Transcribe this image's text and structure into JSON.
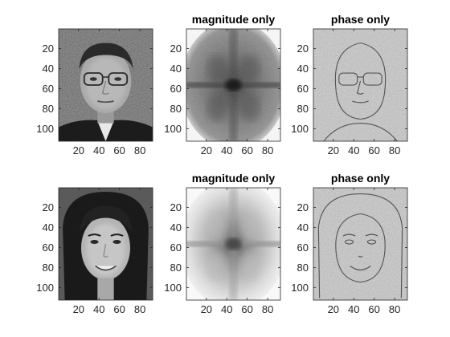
{
  "chart_data": {
    "type": "image-grid",
    "grid": {
      "rows": 2,
      "cols": 3
    },
    "panels": [
      {
        "id": "p11",
        "title": "",
        "row": 0,
        "col": 0,
        "image": "face-1-original",
        "xlim": [
          0.5,
          92.5
        ],
        "ylim": [
          0.5,
          112.5
        ]
      },
      {
        "id": "p12",
        "title": "magnitude only",
        "row": 0,
        "col": 1,
        "image": "face-1-magnitude-only",
        "xlim": [
          0.5,
          92.5
        ],
        "ylim": [
          0.5,
          112.5
        ]
      },
      {
        "id": "p13",
        "title": "phase only",
        "row": 0,
        "col": 2,
        "image": "face-1-phase-only",
        "xlim": [
          0.5,
          92.5
        ],
        "ylim": [
          0.5,
          112.5
        ]
      },
      {
        "id": "p21",
        "title": "",
        "row": 1,
        "col": 0,
        "image": "face-2-original",
        "xlim": [
          0.5,
          92.5
        ],
        "ylim": [
          0.5,
          112.5
        ]
      },
      {
        "id": "p22",
        "title": "magnitude only",
        "row": 1,
        "col": 1,
        "image": "face-2-magnitude-only",
        "xlim": [
          0.5,
          92.5
        ],
        "ylim": [
          0.5,
          112.5
        ]
      },
      {
        "id": "p23",
        "title": "phase only",
        "row": 1,
        "col": 2,
        "image": "face-2-phase-only",
        "xlim": [
          0.5,
          92.5
        ],
        "ylim": [
          0.5,
          112.5
        ]
      }
    ],
    "x_ticks": [
      20,
      40,
      60,
      80
    ],
    "y_ticks": [
      20,
      40,
      60,
      80,
      100
    ],
    "grid_lines": false,
    "colormap": "gray",
    "colors": {
      "axis": "#262626",
      "tick_text": "#262626",
      "title_text": "#000000",
      "background": "#ffffff"
    }
  }
}
